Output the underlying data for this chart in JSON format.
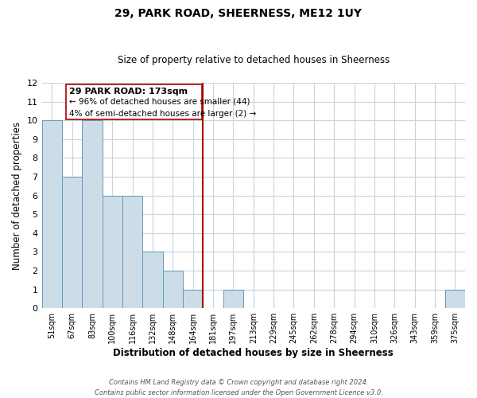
{
  "title": "29, PARK ROAD, SHEERNESS, ME12 1UY",
  "subtitle": "Size of property relative to detached houses in Sheerness",
  "xlabel": "Distribution of detached houses by size in Sheerness",
  "ylabel": "Number of detached properties",
  "bin_labels": [
    "51sqm",
    "67sqm",
    "83sqm",
    "100sqm",
    "116sqm",
    "132sqm",
    "148sqm",
    "164sqm",
    "181sqm",
    "197sqm",
    "213sqm",
    "229sqm",
    "245sqm",
    "262sqm",
    "278sqm",
    "294sqm",
    "310sqm",
    "326sqm",
    "343sqm",
    "359sqm",
    "375sqm"
  ],
  "bar_heights": [
    10,
    7,
    10,
    6,
    6,
    3,
    2,
    1,
    0,
    1,
    0,
    0,
    0,
    0,
    0,
    0,
    0,
    0,
    0,
    0,
    1
  ],
  "bar_color": "#ccdde8",
  "bar_edge_color": "#6699bb",
  "property_line_idx": 8,
  "property_line_color": "#aa0000",
  "ylim": [
    0,
    12
  ],
  "yticks": [
    0,
    1,
    2,
    3,
    4,
    5,
    6,
    7,
    8,
    9,
    10,
    11,
    12
  ],
  "annotation_title": "29 PARK ROAD: 173sqm",
  "annotation_line1": "← 96% of detached houses are smaller (44)",
  "annotation_line2": "4% of semi-detached houses are larger (2) →",
  "annotation_box_color": "#ffffff",
  "annotation_box_edge": "#aa0000",
  "footer_line1": "Contains HM Land Registry data © Crown copyright and database right 2024.",
  "footer_line2": "Contains public sector information licensed under the Open Government Licence v3.0.",
  "background_color": "#ffffff",
  "grid_color": "#c8d4e0"
}
